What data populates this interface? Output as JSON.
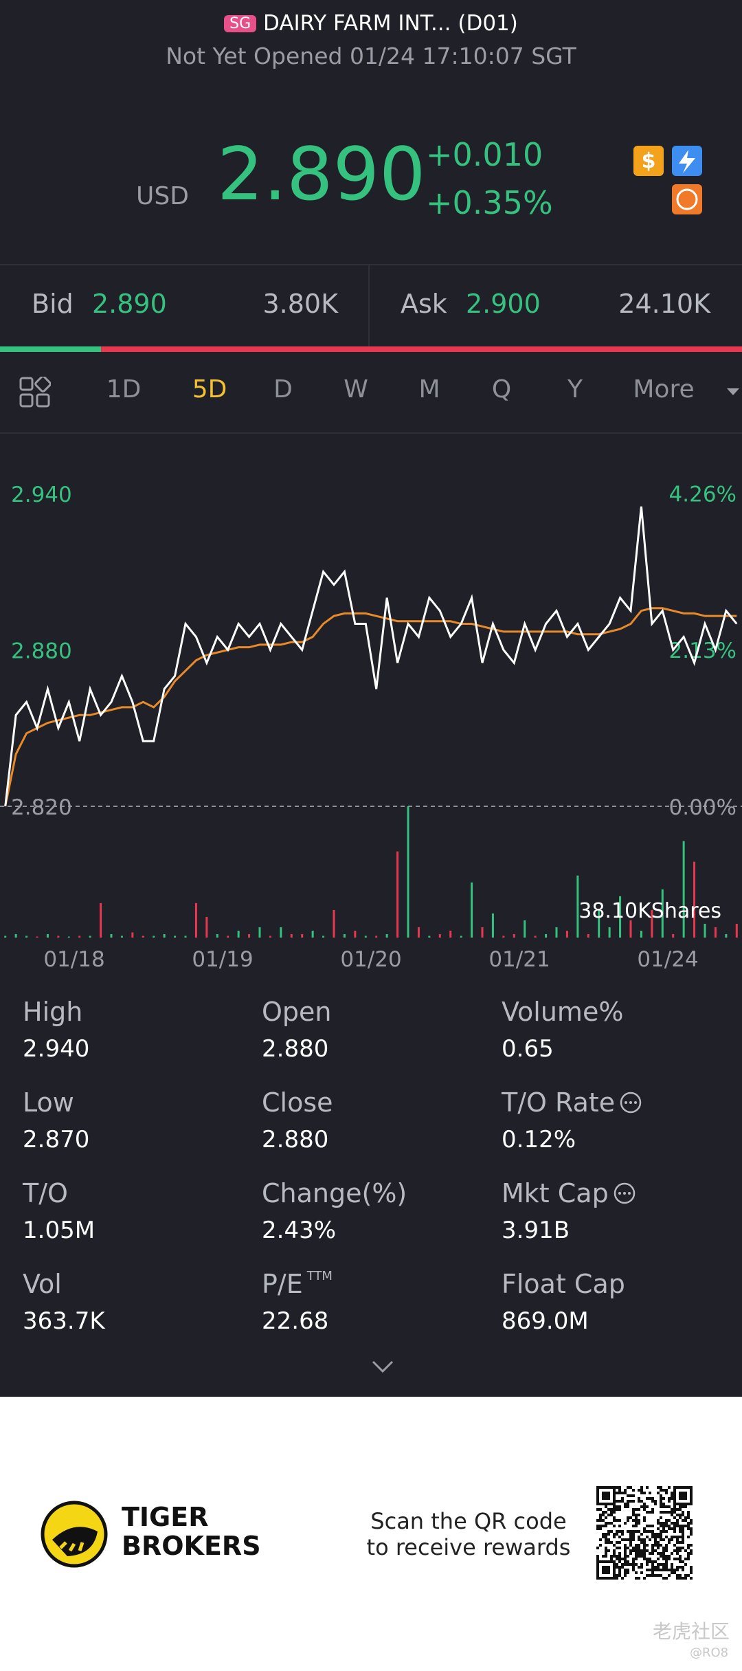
{
  "header": {
    "badge": "SG",
    "title": "DAIRY FARM INT... (D01)",
    "status": "Not Yet Opened 01/24 17:10:07 SGT"
  },
  "quote": {
    "currency": "USD",
    "price": "2.890",
    "change": "+0.010",
    "change_pct": "+0.35%"
  },
  "order_book": {
    "bid_label": "Bid",
    "bid": "2.890",
    "bid_size": {
      "value": 3800,
      "label": "3.80K"
    },
    "ask_label": "Ask",
    "ask": "2.900",
    "ask_size": {
      "value": 24100,
      "label": "24.10K"
    }
  },
  "tabs": [
    "1D",
    "5D",
    "D",
    "W",
    "M",
    "Q",
    "Y",
    "More"
  ],
  "active_tab": 1,
  "chart_data": {
    "type": "line",
    "xlim": [
      -0.5,
      69.5
    ],
    "xticks": [
      {
        "value": 6.5,
        "label": "01/18"
      },
      {
        "value": 20.5,
        "label": "01/19"
      },
      {
        "value": 34.5,
        "label": "01/20"
      },
      {
        "value": 48.5,
        "label": "01/21"
      },
      {
        "value": 62.5,
        "label": "01/24"
      }
    ],
    "ylim": [
      2.82,
      2.95
    ],
    "yticks": [
      {
        "value": 2.94,
        "label": "2.940"
      },
      {
        "value": 2.88,
        "label": "2.880"
      },
      {
        "value": 2.82,
        "label": "2.820"
      }
    ],
    "y2lim": [
      0,
      4.61
    ],
    "y2ticks": [
      {
        "value": 4.26,
        "label": "4.26%"
      },
      {
        "value": 2.13,
        "label": "2.13%"
      },
      {
        "value": 0,
        "label": "0.00%"
      }
    ],
    "series": [
      {
        "color": "#ffffff",
        "values": [
          2.82,
          2.855,
          2.86,
          2.85,
          2.865,
          2.85,
          2.86,
          2.845,
          2.865,
          2.855,
          2.86,
          2.87,
          2.86,
          2.845,
          2.845,
          2.865,
          2.87,
          2.89,
          2.885,
          2.875,
          2.885,
          2.88,
          2.89,
          2.885,
          2.89,
          2.88,
          2.89,
          2.885,
          2.88,
          2.895,
          2.91,
          2.905,
          2.91,
          2.89,
          2.89,
          2.865,
          2.9,
          2.875,
          2.89,
          2.885,
          2.9,
          2.895,
          2.885,
          2.89,
          2.9,
          2.875,
          2.89,
          2.88,
          2.875,
          2.89,
          2.88,
          2.89,
          2.895,
          2.885,
          2.89,
          2.88,
          2.885,
          2.89,
          2.9,
          2.895,
          2.935,
          2.89,
          2.895,
          2.88,
          2.885,
          2.875,
          2.89,
          2.88,
          2.895,
          2.89
        ]
      },
      {
        "color": "#e8892a",
        "values": [
          2.82,
          2.84,
          2.848,
          2.85,
          2.852,
          2.853,
          2.854,
          2.855,
          2.855,
          2.856,
          2.857,
          2.858,
          2.858,
          2.86,
          2.858,
          2.862,
          2.868,
          2.872,
          2.876,
          2.878,
          2.879,
          2.88,
          2.881,
          2.881,
          2.882,
          2.882,
          2.882,
          2.883,
          2.883,
          2.885,
          2.89,
          2.893,
          2.894,
          2.894,
          2.894,
          2.893,
          2.892,
          2.891,
          2.891,
          2.891,
          2.891,
          2.891,
          2.891,
          2.89,
          2.89,
          2.889,
          2.888,
          2.887,
          2.887,
          2.887,
          2.887,
          2.887,
          2.887,
          2.887,
          2.886,
          2.886,
          2.886,
          2.887,
          2.888,
          2.89,
          2.895,
          2.896,
          2.896,
          2.895,
          2.894,
          2.894,
          2.893,
          2.893,
          2.893,
          2.893
        ]
      }
    ],
    "volume": {
      "label": "38.10KShares",
      "ylim": [
        0,
        38.1
      ],
      "up_color": "#35c27f",
      "down_color": "#e8384f",
      "values": [
        0.5,
        1,
        0.5,
        0.3,
        1,
        0.5,
        0.3,
        0.5,
        0.5,
        10,
        1,
        0.5,
        1.5,
        0.5,
        0.5,
        1,
        0.5,
        0.5,
        10,
        6,
        1,
        0.5,
        2,
        1,
        3,
        0.5,
        3,
        1,
        1,
        2,
        0.5,
        8,
        1,
        2,
        0.5,
        0.5,
        1,
        25,
        38.1,
        3,
        0.5,
        1,
        2,
        0.5,
        16,
        3,
        7,
        0.5,
        1,
        5,
        0.5,
        1,
        3,
        2,
        18,
        1,
        8,
        3,
        12,
        5,
        2,
        8,
        14,
        1,
        28,
        22,
        4,
        3,
        1,
        4
      ]
    }
  },
  "stats": [
    {
      "label": "High",
      "value": "2.940"
    },
    {
      "label": "Open",
      "value": "2.880"
    },
    {
      "label": "Volume%",
      "value": "0.65"
    },
    {
      "label": "Low",
      "value": "2.870"
    },
    {
      "label": "Close",
      "value": "2.880"
    },
    {
      "label": "T/O Rate",
      "value": "0.12%",
      "info": true
    },
    {
      "label": "T/O",
      "value": "1.05M"
    },
    {
      "label": "Change(%)",
      "value": "2.43%"
    },
    {
      "label": "Mkt Cap",
      "value": "3.91B",
      "info": true
    },
    {
      "label": "Vol",
      "value": "363.7K"
    },
    {
      "label": "P/E",
      "sup": "TTM",
      "value": "22.68"
    },
    {
      "label": "Float Cap",
      "value": "869.0M"
    }
  ],
  "footer": {
    "brand": [
      "TIGER",
      "BROKERS"
    ],
    "cta": [
      "Scan the QR code",
      "to receive rewards"
    ],
    "watermark": "老虎社区",
    "handle": "@RO8"
  }
}
